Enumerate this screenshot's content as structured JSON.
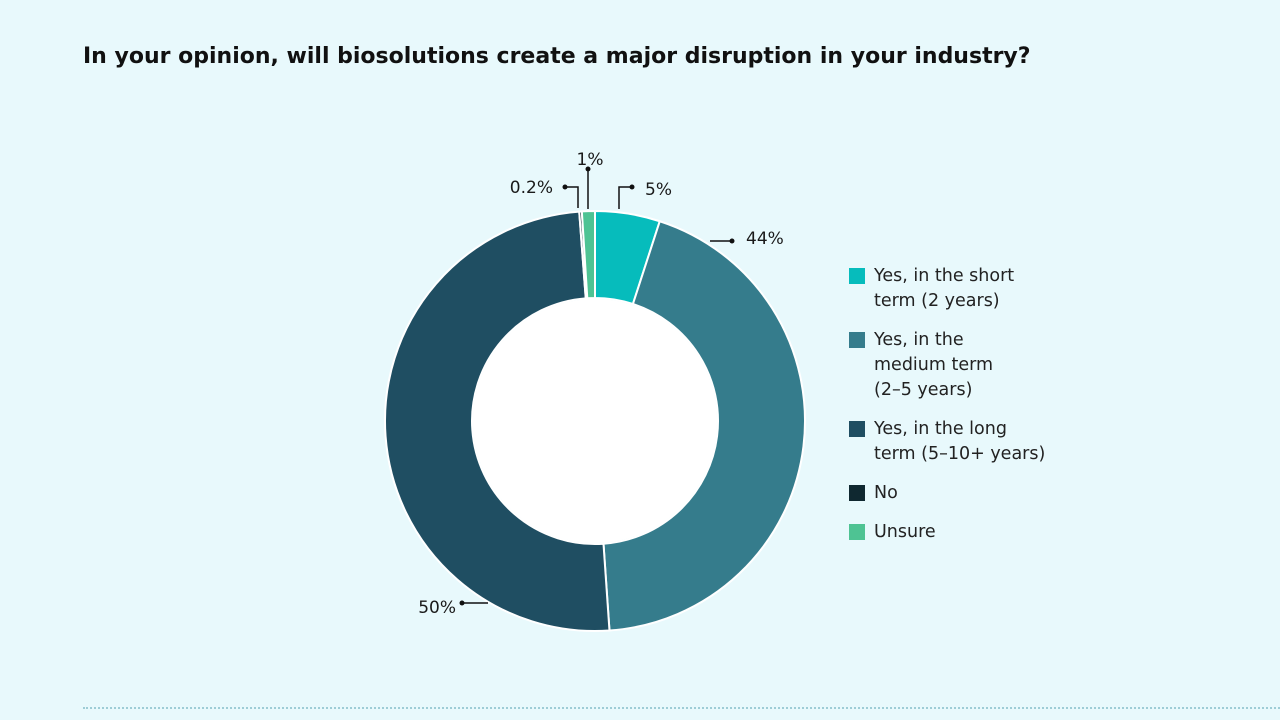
{
  "chart_data": {
    "type": "pie",
    "subtype": "donut",
    "title": "In your opinion, will biosolutions create a major disruption in your industry?",
    "slices": [
      {
        "label": "Yes, in the short\nterm (2 years)",
        "value": 5,
        "value_label": "5%",
        "color": "#06bcbc"
      },
      {
        "label": "Yes, in the\nmedium term\n(2–5 years)",
        "value": 44,
        "value_label": "44%",
        "color": "#357c8c"
      },
      {
        "label": "Yes, in the long\nterm (5–10+ years)",
        "value": 50,
        "value_label": "50%",
        "color": "#1f4e62"
      },
      {
        "label": "No",
        "value": 0.2,
        "value_label": "0.2%",
        "color": "#0f2830"
      },
      {
        "label": "Unsure",
        "value": 1,
        "value_label": "1%",
        "color": "#4ec393"
      }
    ],
    "legend_position": "right"
  }
}
